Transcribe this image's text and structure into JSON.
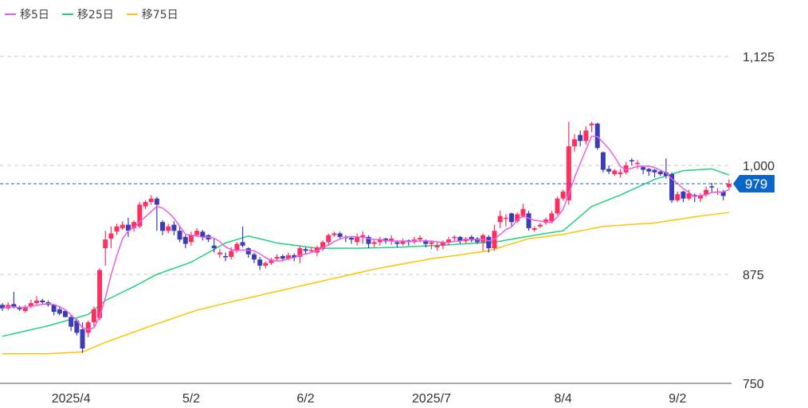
{
  "legend": [
    {
      "label": "移5日",
      "color": "#e85ee8"
    },
    {
      "label": "移25日",
      "color": "#1fd27c"
    },
    {
      "label": "移75日",
      "color": "#ffc400"
    }
  ],
  "colors": {
    "up": "#ff3060",
    "down": "#3c3cb4",
    "price_line": "#1a66c8",
    "price_label_bg": "#0b66c8",
    "grid": "#cccccc"
  },
  "chart_data": {
    "type": "candlestick",
    "ylim": [
      750,
      1150
    ],
    "y_ticks": [
      {
        "value": 1125,
        "label": "1,125"
      },
      {
        "value": 1000,
        "label": "1,000"
      },
      {
        "value": 875,
        "label": "875"
      },
      {
        "value": 750,
        "label": "750"
      }
    ],
    "x_ticks": [
      {
        "index": 12,
        "label": "2025/4"
      },
      {
        "index": 33,
        "label": "5/2"
      },
      {
        "index": 53,
        "label": "6/2"
      },
      {
        "index": 75,
        "label": "2025/7"
      },
      {
        "index": 98,
        "label": "8/4"
      },
      {
        "index": 118,
        "label": "9/2"
      }
    ],
    "grid": true,
    "current_price": {
      "value": 979,
      "label": "979"
    },
    "ohlc": [
      [
        840,
        842,
        833,
        836
      ],
      [
        836,
        843,
        834,
        840
      ],
      [
        841,
        855,
        836,
        837
      ],
      [
        837,
        839,
        833,
        835
      ],
      [
        833,
        840,
        831,
        838
      ],
      [
        838,
        846,
        836,
        842
      ],
      [
        842,
        850,
        840,
        845
      ],
      [
        845,
        847,
        840,
        843
      ],
      [
        843,
        845,
        838,
        840
      ],
      [
        840,
        841,
        828,
        832
      ],
      [
        835,
        838,
        828,
        830
      ],
      [
        833,
        834,
        826,
        826
      ],
      [
        826,
        828,
        810,
        815
      ],
      [
        822,
        824,
        805,
        808
      ],
      [
        812,
        820,
        785,
        790
      ],
      [
        808,
        822,
        803,
        820
      ],
      [
        820,
        838,
        815,
        835
      ],
      [
        825,
        882,
        822,
        880
      ],
      [
        905,
        925,
        885,
        915
      ],
      [
        916,
        930,
        905,
        922
      ],
      [
        924,
        933,
        920,
        930
      ],
      [
        928,
        936,
        926,
        932
      ],
      [
        932,
        940,
        918,
        925
      ],
      [
        928,
        937,
        924,
        935
      ],
      [
        930,
        958,
        928,
        955
      ],
      [
        953,
        960,
        950,
        958
      ],
      [
        958,
        966,
        955,
        962
      ],
      [
        962,
        964,
        925,
        955
      ],
      [
        935,
        937,
        920,
        925
      ],
      [
        925,
        933,
        922,
        930
      ],
      [
        932,
        936,
        920,
        925
      ],
      [
        925,
        930,
        912,
        915
      ],
      [
        918,
        920,
        905,
        910
      ],
      [
        912,
        924,
        908,
        920
      ],
      [
        920,
        928,
        918,
        925
      ],
      [
        924,
        926,
        914,
        918
      ],
      [
        920,
        921,
        912,
        915
      ],
      [
        908,
        916,
        900,
        905
      ],
      [
        898,
        904,
        894,
        900
      ],
      [
        896,
        900,
        890,
        895
      ],
      [
        895,
        906,
        892,
        902
      ],
      [
        902,
        912,
        900,
        910
      ],
      [
        912,
        930,
        906,
        908
      ],
      [
        905,
        906,
        894,
        898
      ],
      [
        898,
        900,
        888,
        892
      ],
      [
        892,
        895,
        880,
        885
      ],
      [
        885,
        890,
        882,
        888
      ],
      [
        888,
        894,
        886,
        892
      ],
      [
        893,
        898,
        890,
        895
      ],
      [
        896,
        898,
        890,
        893
      ],
      [
        893,
        900,
        891,
        897
      ],
      [
        897,
        899,
        890,
        894
      ],
      [
        895,
        908,
        888,
        905
      ],
      [
        904,
        906,
        898,
        902
      ],
      [
        902,
        906,
        900,
        903
      ],
      [
        900,
        908,
        896,
        906
      ],
      [
        904,
        914,
        902,
        912
      ],
      [
        912,
        922,
        908,
        920
      ],
      [
        920,
        924,
        918,
        922
      ],
      [
        922,
        924,
        916,
        918
      ],
      [
        918,
        920,
        912,
        917
      ],
      [
        917,
        918,
        910,
        915
      ],
      [
        912,
        922,
        908,
        918
      ],
      [
        918,
        924,
        910,
        920
      ],
      [
        918,
        920,
        905,
        910
      ],
      [
        910,
        914,
        906,
        912
      ],
      [
        912,
        918,
        908,
        915
      ],
      [
        916,
        917,
        910,
        913
      ],
      [
        913,
        920,
        909,
        916
      ],
      [
        912,
        914,
        906,
        910
      ],
      [
        910,
        916,
        908,
        913
      ],
      [
        914,
        915,
        908,
        912
      ],
      [
        912,
        918,
        910,
        915
      ],
      [
        915,
        920,
        912,
        917
      ],
      [
        914,
        915,
        906,
        910
      ],
      [
        910,
        914,
        904,
        912
      ],
      [
        906,
        912,
        902,
        908
      ],
      [
        908,
        914,
        904,
        912
      ],
      [
        912,
        918,
        908,
        915
      ],
      [
        918,
        920,
        912,
        918
      ],
      [
        918,
        919,
        910,
        913
      ],
      [
        913,
        918,
        910,
        916
      ],
      [
        918,
        920,
        912,
        914
      ],
      [
        916,
        918,
        910,
        912
      ],
      [
        912,
        922,
        902,
        920
      ],
      [
        918,
        920,
        900,
        905
      ],
      [
        905,
        932,
        902,
        925
      ],
      [
        935,
        948,
        928,
        942
      ],
      [
        940,
        944,
        930,
        940
      ],
      [
        945,
        946,
        930,
        935
      ],
      [
        936,
        946,
        934,
        944
      ],
      [
        942,
        956,
        940,
        950
      ],
      [
        945,
        948,
        925,
        928
      ],
      [
        926,
        930,
        924,
        928
      ],
      [
        930,
        934,
        928,
        932
      ],
      [
        934,
        940,
        932,
        938
      ],
      [
        936,
        948,
        934,
        945
      ],
      [
        945,
        964,
        943,
        962
      ],
      [
        962,
        972,
        960,
        970
      ],
      [
        960,
        1050,
        955,
        1022
      ],
      [
        1022,
        1036,
        1016,
        1030
      ],
      [
        1035,
        1040,
        1022,
        1028
      ],
      [
        1028,
        1045,
        1024,
        1040
      ],
      [
        1046,
        1050,
        1038,
        1048
      ],
      [
        1048,
        1049,
        1018,
        1020
      ],
      [
        1015,
        1016,
        992,
        995
      ],
      [
        996,
        1000,
        990,
        993
      ],
      [
        990,
        996,
        988,
        994
      ],
      [
        990,
        996,
        986,
        992
      ],
      [
        992,
        1004,
        990,
        1000
      ],
      [
        1006,
        1008,
        1000,
        1005
      ],
      [
        1003,
        1006,
        996,
        1003
      ],
      [
        998,
        1000,
        990,
        995
      ],
      [
        996,
        997,
        988,
        993
      ],
      [
        995,
        996,
        986,
        992
      ],
      [
        993,
        994,
        988,
        990
      ],
      [
        992,
        1008,
        985,
        988
      ],
      [
        990,
        992,
        957,
        960
      ],
      [
        960,
        970,
        958,
        967
      ],
      [
        970,
        971,
        958,
        962
      ],
      [
        962,
        972,
        960,
        968
      ],
      [
        966,
        968,
        958,
        964
      ],
      [
        962,
        968,
        958,
        966
      ],
      [
        966,
        976,
        964,
        972
      ],
      [
        976,
        980,
        968,
        975
      ],
      [
        970,
        974,
        966,
        970
      ],
      [
        970,
        972,
        960,
        965
      ],
      [
        975,
        984,
        972,
        979
      ]
    ],
    "ma25": [
      [
        0,
        804
      ],
      [
        8,
        816
      ],
      [
        15,
        829
      ],
      [
        18,
        845
      ],
      [
        23,
        861
      ],
      [
        27,
        875
      ],
      [
        33,
        889
      ],
      [
        39,
        911
      ],
      [
        43,
        919
      ],
      [
        48,
        911
      ],
      [
        55,
        905
      ],
      [
        62,
        905
      ],
      [
        69,
        906
      ],
      [
        78,
        909
      ],
      [
        86,
        912
      ],
      [
        94,
        921
      ],
      [
        98,
        925
      ],
      [
        103,
        953
      ],
      [
        108,
        966
      ],
      [
        114,
        984
      ],
      [
        119,
        994
      ],
      [
        124,
        996
      ],
      [
        127,
        989
      ]
    ],
    "ma75": [
      [
        0,
        784
      ],
      [
        8,
        784
      ],
      [
        14,
        786
      ],
      [
        18,
        797
      ],
      [
        26,
        816
      ],
      [
        34,
        834
      ],
      [
        41,
        845
      ],
      [
        55,
        866
      ],
      [
        65,
        881
      ],
      [
        75,
        893
      ],
      [
        85,
        902
      ],
      [
        92,
        916
      ],
      [
        98,
        921
      ],
      [
        105,
        930
      ],
      [
        114,
        934
      ],
      [
        122,
        942
      ],
      [
        127,
        946
      ]
    ]
  }
}
